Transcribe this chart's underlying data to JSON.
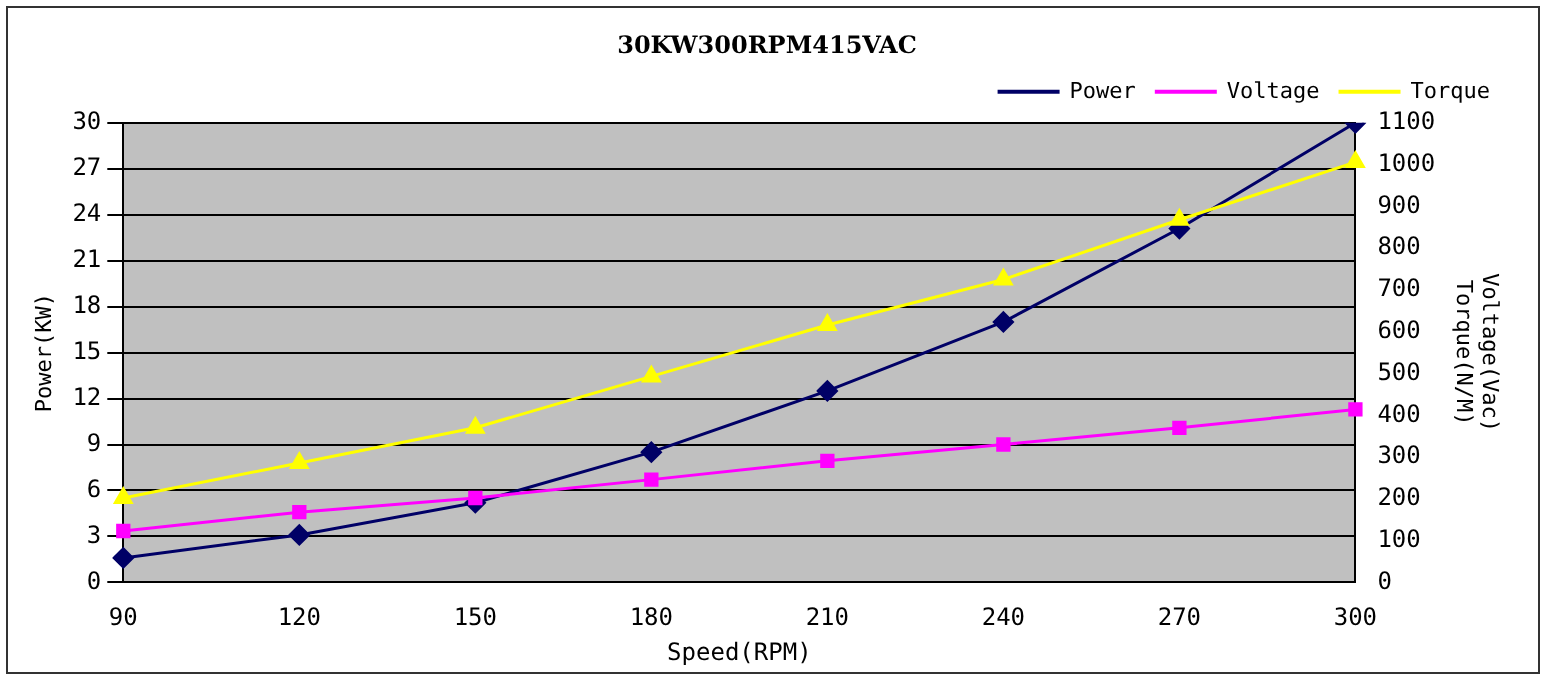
{
  "chart_data": {
    "type": "line",
    "title": "30KW300RPM415VAC",
    "xlabel": "Speed(RPM)",
    "ylabel": "Power(KW)",
    "y2label": "Voltage(Vac)\nTorque(N/M)",
    "categories": [
      "90",
      "120",
      "150",
      "180",
      "210",
      "240",
      "270",
      "300"
    ],
    "series": [
      {
        "name": "Power",
        "color": "#000066",
        "marker": "diamond",
        "values": [
          1.6,
          3.1,
          5.2,
          8.5,
          12.5,
          17,
          23.1,
          30
        ]
      },
      {
        "name": "Voltage",
        "color": "#ff00ff",
        "marker": "square",
        "axis": "y2",
        "values": [
          123,
          168,
          202,
          246,
          291,
          330,
          370,
          414
        ]
      },
      {
        "name": "Torque",
        "color": "#ffff00",
        "marker": "triangle",
        "axis": "y2",
        "values": [
          202,
          286,
          370,
          493,
          616,
          725,
          868,
          1006
        ]
      }
    ],
    "ylim": [
      0,
      30
    ],
    "yticks": [
      0,
      3,
      6,
      9,
      12,
      15,
      18,
      21,
      24,
      27,
      30
    ],
    "y2lim": [
      0,
      1100
    ],
    "y2ticks": [
      0,
      100,
      200,
      300,
      400,
      500,
      600,
      700,
      800,
      900,
      1000,
      1100
    ],
    "grid": "y",
    "legend": "top right",
    "line_style": "solid"
  }
}
